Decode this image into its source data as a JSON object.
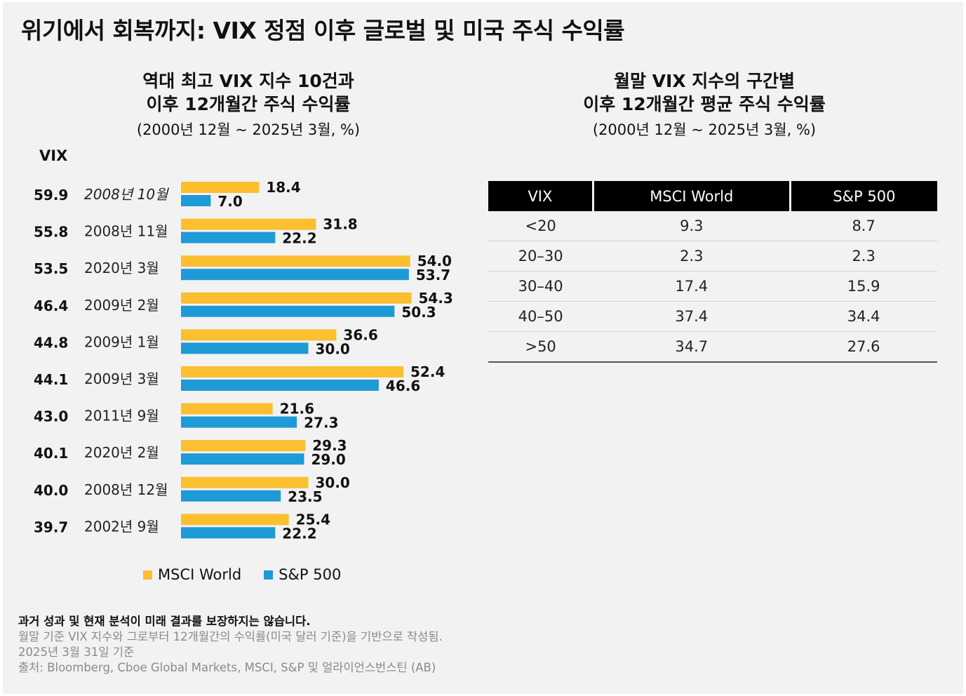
{
  "title": "위기에서 회복까지: VIX 정점 이후 글로벌 및 미국 주식 수익률",
  "left_panel": {
    "subtitle_line1": "역대 최고 VIX 지수 10건과",
    "subtitle_line2": "이후 12개월간 주식 수익률",
    "period": "(2000년 12월 ~ 2025년 3월, %)",
    "vix_header": "VIX"
  },
  "right_panel": {
    "subtitle_line1": "월말 VIX 지수의 구간별",
    "subtitle_line2": "이후 12개월간 평균 주식 수익률",
    "period": "(2000년 12월 ~ 2025년 3월, %)"
  },
  "colors": {
    "msci": "#fbbf2f",
    "sp500": "#1e9ad6"
  },
  "chart_data": [
    {
      "type": "bar",
      "orientation": "horizontal",
      "title": "역대 최고 VIX 지수 10건과 이후 12개월간 주식 수익률",
      "categories": [
        "2008년 10월",
        "2008년 11월",
        "2020년 3월",
        "2009년 2월",
        "2009년 1월",
        "2009년 3월",
        "2011년 9월",
        "2020년 2월",
        "2008년 12월",
        "2002년 9월"
      ],
      "category_styles": [
        "italic",
        "normal",
        "normal",
        "normal",
        "normal",
        "normal",
        "normal",
        "normal",
        "normal",
        "normal"
      ],
      "vix_values": [
        "59.9",
        "55.8",
        "53.5",
        "46.4",
        "44.8",
        "44.1",
        "43.0",
        "40.1",
        "40.0",
        "39.7"
      ],
      "series": [
        {
          "name": "MSCI World",
          "values": [
            18.4,
            31.8,
            54.0,
            54.3,
            36.6,
            52.4,
            21.6,
            29.3,
            30.0,
            25.4
          ]
        },
        {
          "name": "S&P 500",
          "values": [
            7.0,
            22.2,
            53.7,
            50.3,
            30.0,
            46.6,
            27.3,
            29.0,
            23.5,
            22.2
          ]
        }
      ],
      "xlim": [
        0,
        60
      ],
      "legend": "bottom"
    },
    {
      "type": "table",
      "title": "월말 VIX 지수의 구간별 이후 12개월간 평균 주식 수익률",
      "columns": [
        "VIX",
        "MSCI World",
        "S&P 500"
      ],
      "rows": [
        [
          "<20",
          "9.3",
          "8.7"
        ],
        [
          "20–30",
          "2.3",
          "2.3"
        ],
        [
          "30–40",
          "17.4",
          "15.9"
        ],
        [
          "40–50",
          "37.4",
          "34.4"
        ],
        [
          ">50",
          "34.7",
          "27.6"
        ]
      ]
    }
  ],
  "footer": {
    "disclaimer": "과거 성과 및 현재 분석이 미래 결과를 보장하지는 않습니다.",
    "note1": "월말 기준 VIX 지수와 그로부터 12개월간의 수익률(미국 달러 기준)을 기반으로 작성됨.",
    "note2": "2025년 3월 31일 기준",
    "source": "출처: Bloomberg, Cboe Global Markets, MSCI, S&P 및 얼라이언스번스틴 (AB)"
  }
}
